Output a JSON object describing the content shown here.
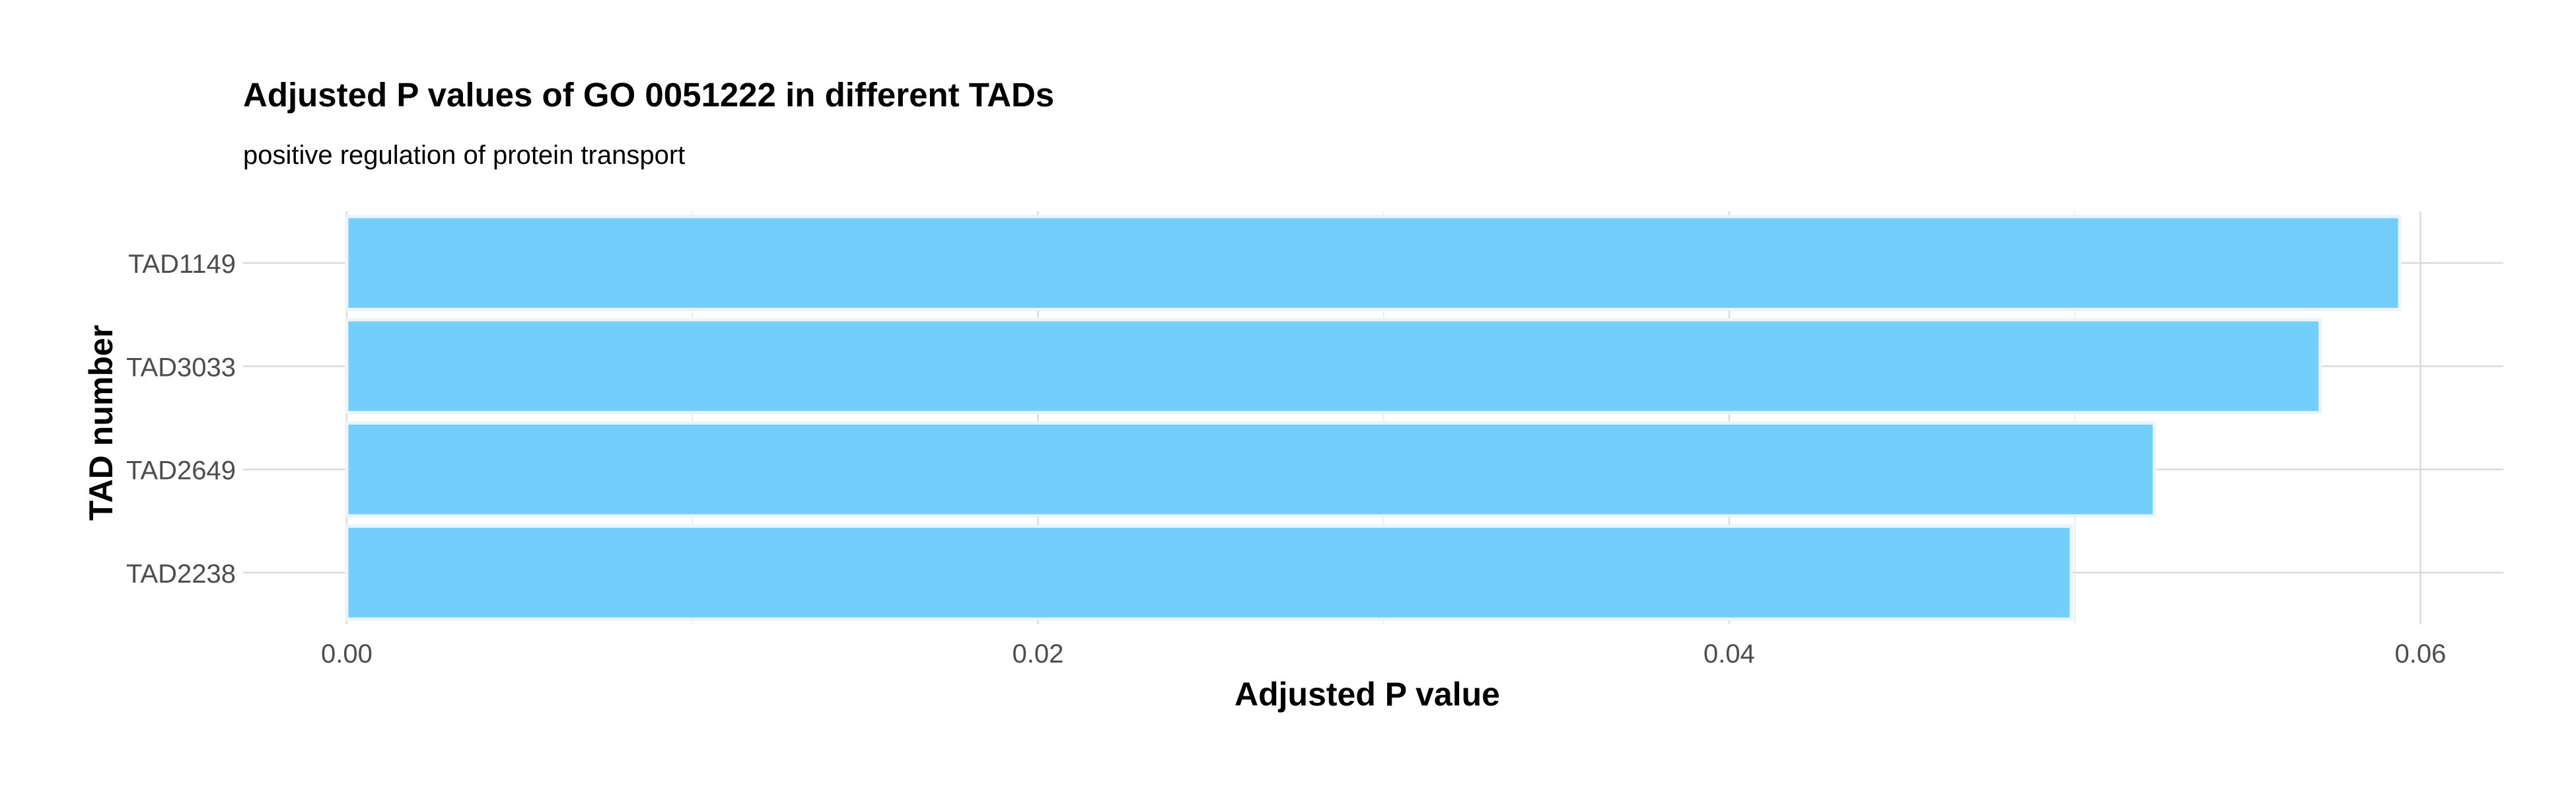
{
  "chart_data": {
    "type": "bar",
    "orientation": "horizontal",
    "title": "Adjusted P values of GO 0051222 in different TADs",
    "subtitle": "positive regulation of protein transport",
    "xlabel": "Adjusted P value",
    "ylabel": "TAD number",
    "categories": [
      "TAD1149",
      "TAD3033",
      "TAD2649",
      "TAD2238"
    ],
    "values": [
      0.0594,
      0.0571,
      0.0523,
      0.0499
    ],
    "xlim": [
      -0.003,
      0.0624
    ],
    "xticks": [
      0.0,
      0.02,
      0.04,
      0.06
    ],
    "xtick_labels": [
      "0.00",
      "0.02",
      "0.04",
      "0.06"
    ],
    "grid": true,
    "legend": "none",
    "bar_color": "#74CEFB",
    "bar_edge_color": "#E9F4FB"
  }
}
